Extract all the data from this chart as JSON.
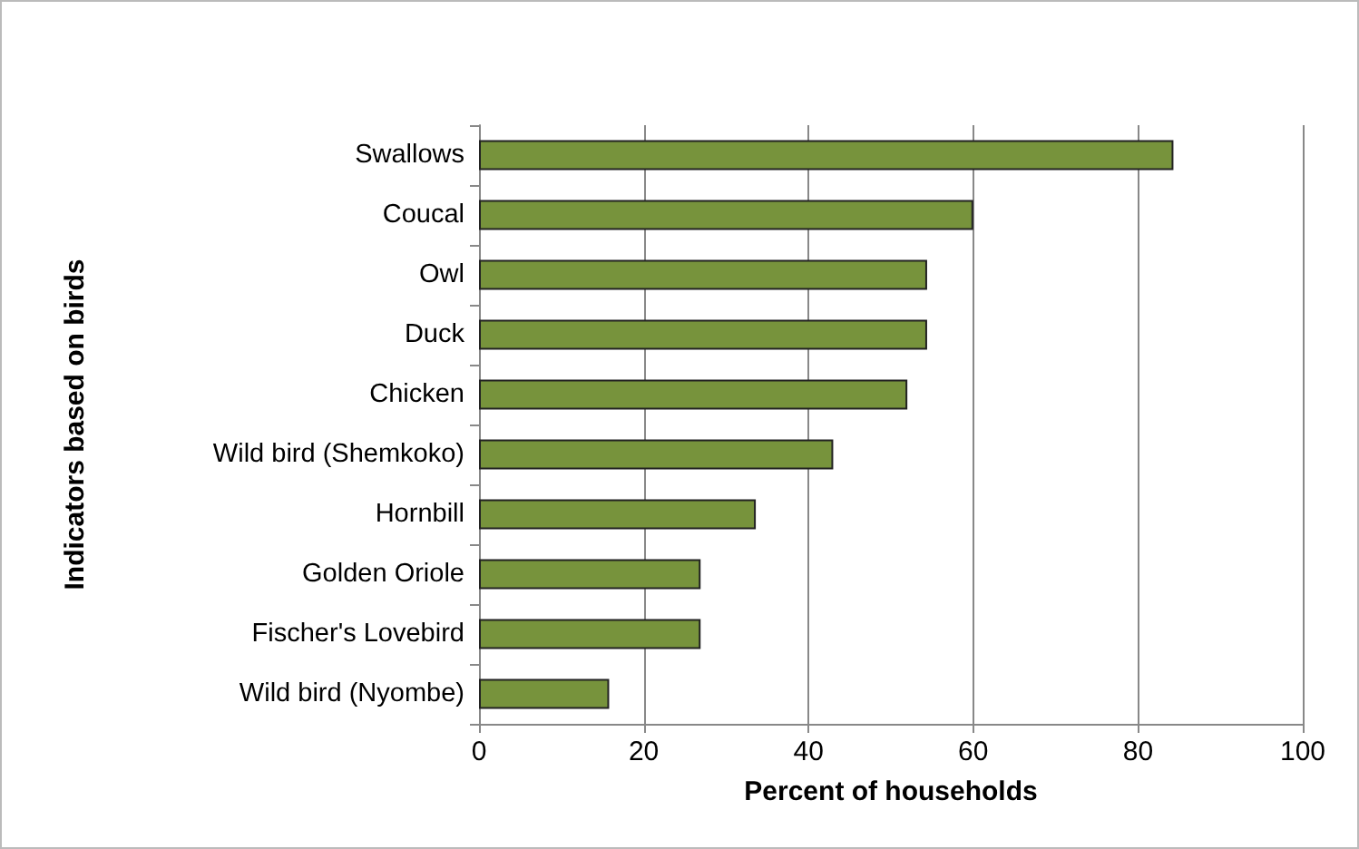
{
  "chart_data": {
    "type": "bar",
    "orientation": "horizontal",
    "xlabel": "Percent of households",
    "ylabel": "Indicators based on birds",
    "categories": [
      "Swallows",
      "Coucal",
      "Owl",
      "Duck",
      "Chicken",
      "Wild bird (Shemkoko)",
      "Hornbill",
      "Golden Oriole",
      "Fischer's Lovebird",
      "Wild bird (Nyombe)"
    ],
    "values": [
      84.3,
      60,
      54.4,
      54.4,
      52,
      43,
      33.6,
      26.9,
      26.9,
      15.8
    ],
    "color": "#77933c",
    "xlim": [
      0,
      100
    ],
    "xticks": [
      0,
      20,
      40,
      60,
      80,
      100
    ],
    "grid": "x"
  }
}
